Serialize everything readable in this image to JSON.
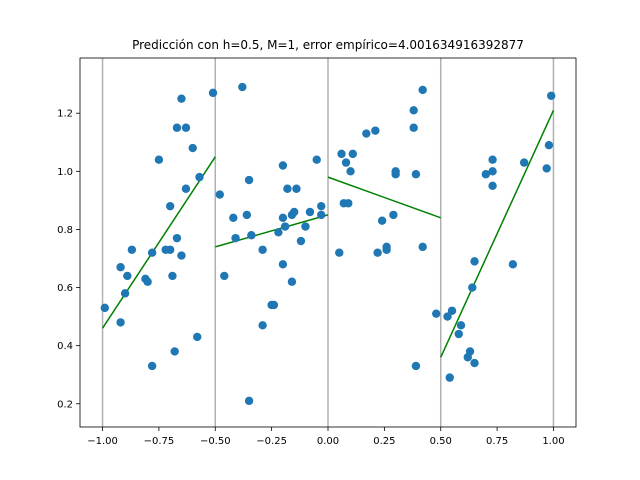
{
  "chart_data": {
    "type": "scatter",
    "title": "Predicción con h=0.5, M=1, error empírico=4.001634916392877",
    "xlabel": "",
    "ylabel": "",
    "xlim": [
      -1.1,
      1.1
    ],
    "ylim": [
      0.12,
      1.39
    ],
    "x_ticks": [
      -1.0,
      -0.75,
      -0.5,
      -0.25,
      0.0,
      0.25,
      0.5,
      0.75,
      1.0
    ],
    "x_tick_labels": [
      "−1.00",
      "−0.75",
      "−0.50",
      "−0.25",
      "0.00",
      "0.25",
      "0.50",
      "0.75",
      "1.00"
    ],
    "y_ticks": [
      0.2,
      0.4,
      0.6,
      0.8,
      1.0,
      1.2
    ],
    "y_tick_labels": [
      "0.2",
      "0.4",
      "0.6",
      "0.8",
      "1.0",
      "1.2"
    ],
    "vertical_lines": [
      -1.0,
      -0.5,
      0.0,
      0.5,
      1.0
    ],
    "grid": false,
    "colors": {
      "points": "#1f77b4",
      "fit": "#008000",
      "vlines": "#b0b0b0"
    },
    "points": [
      [
        -0.99,
        0.53
      ],
      [
        -0.92,
        0.48
      ],
      [
        -0.92,
        0.67
      ],
      [
        -0.9,
        0.58
      ],
      [
        -0.89,
        0.64
      ],
      [
        -0.87,
        0.73
      ],
      [
        -0.81,
        0.63
      ],
      [
        -0.8,
        0.62
      ],
      [
        -0.78,
        0.72
      ],
      [
        -0.78,
        0.33
      ],
      [
        -0.75,
        1.04
      ],
      [
        -0.72,
        0.73
      ],
      [
        -0.7,
        0.73
      ],
      [
        -0.7,
        0.88
      ],
      [
        -0.69,
        0.64
      ],
      [
        -0.68,
        0.38
      ],
      [
        -0.67,
        0.77
      ],
      [
        -0.67,
        1.15
      ],
      [
        -0.65,
        0.71
      ],
      [
        -0.65,
        1.25
      ],
      [
        -0.63,
        1.15
      ],
      [
        -0.63,
        0.94
      ],
      [
        -0.6,
        1.08
      ],
      [
        -0.58,
        0.43
      ],
      [
        -0.57,
        0.98
      ],
      [
        -0.51,
        1.27
      ],
      [
        -0.48,
        0.92
      ],
      [
        -0.46,
        0.64
      ],
      [
        -0.42,
        0.84
      ],
      [
        -0.41,
        0.77
      ],
      [
        -0.38,
        1.29
      ],
      [
        -0.36,
        0.85
      ],
      [
        -0.35,
        0.97
      ],
      [
        -0.35,
        0.21
      ],
      [
        -0.34,
        0.78
      ],
      [
        -0.29,
        0.47
      ],
      [
        -0.29,
        0.73
      ],
      [
        -0.25,
        0.54
      ],
      [
        -0.24,
        0.54
      ],
      [
        -0.22,
        0.79
      ],
      [
        -0.2,
        1.02
      ],
      [
        -0.2,
        0.84
      ],
      [
        -0.2,
        0.68
      ],
      [
        -0.19,
        0.81
      ],
      [
        -0.18,
        0.94
      ],
      [
        -0.16,
        0.62
      ],
      [
        -0.16,
        0.85
      ],
      [
        -0.15,
        0.86
      ],
      [
        -0.14,
        0.94
      ],
      [
        -0.12,
        0.76
      ],
      [
        -0.1,
        0.81
      ],
      [
        -0.08,
        0.86
      ],
      [
        -0.05,
        1.04
      ],
      [
        -0.03,
        0.88
      ],
      [
        -0.03,
        0.85
      ],
      [
        0.05,
        0.72
      ],
      [
        0.06,
        1.06
      ],
      [
        0.07,
        0.89
      ],
      [
        0.08,
        1.03
      ],
      [
        0.09,
        0.89
      ],
      [
        0.1,
        1.0
      ],
      [
        0.11,
        1.06
      ],
      [
        0.17,
        1.13
      ],
      [
        0.21,
        1.14
      ],
      [
        0.22,
        0.72
      ],
      [
        0.24,
        0.83
      ],
      [
        0.26,
        0.74
      ],
      [
        0.26,
        0.73
      ],
      [
        0.29,
        0.85
      ],
      [
        0.3,
        1.0
      ],
      [
        0.3,
        0.99
      ],
      [
        0.38,
        1.21
      ],
      [
        0.38,
        1.15
      ],
      [
        0.39,
        0.99
      ],
      [
        0.39,
        0.33
      ],
      [
        0.42,
        0.74
      ],
      [
        0.42,
        1.28
      ],
      [
        0.48,
        0.51
      ],
      [
        0.53,
        0.5
      ],
      [
        0.54,
        0.29
      ],
      [
        0.55,
        0.52
      ],
      [
        0.58,
        0.44
      ],
      [
        0.59,
        0.47
      ],
      [
        0.62,
        0.36
      ],
      [
        0.63,
        0.38
      ],
      [
        0.64,
        0.6
      ],
      [
        0.65,
        0.34
      ],
      [
        0.65,
        0.69
      ],
      [
        0.7,
        0.99
      ],
      [
        0.73,
        1.0
      ],
      [
        0.73,
        1.04
      ],
      [
        0.73,
        0.95
      ],
      [
        0.82,
        0.68
      ],
      [
        0.87,
        1.03
      ],
      [
        0.97,
        1.01
      ],
      [
        0.98,
        1.09
      ],
      [
        0.99,
        1.26
      ]
    ],
    "fit_segments": [
      [
        [
          -1.0,
          0.46
        ],
        [
          -0.5,
          1.05
        ]
      ],
      [
        [
          -0.5,
          0.74
        ],
        [
          0.0,
          0.85
        ]
      ],
      [
        [
          0.0,
          0.98
        ],
        [
          0.5,
          0.84
        ]
      ],
      [
        [
          0.5,
          0.36
        ],
        [
          1.0,
          1.21
        ]
      ]
    ]
  }
}
